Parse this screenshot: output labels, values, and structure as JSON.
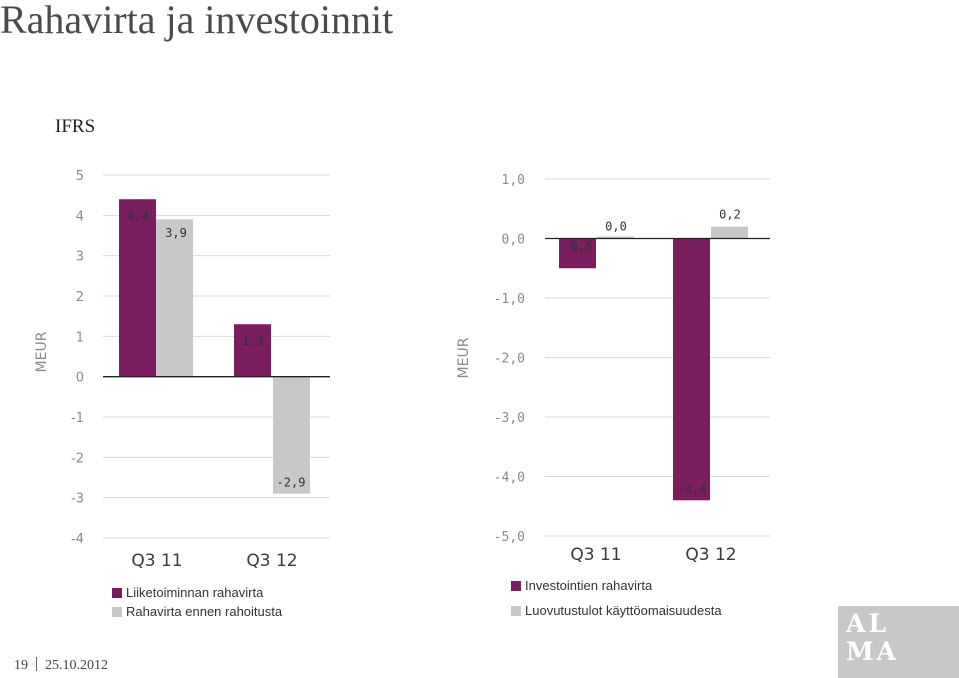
{
  "page": {
    "title": "Rahavirta ja investoinnit",
    "subtitle": "IFRS",
    "footer_page": "19",
    "footer_date": "25.10.2012",
    "logo_text": "ALMA"
  },
  "colors": {
    "purple": "#7a1e5f",
    "gray": "#c8c8c8"
  },
  "chart_data": [
    {
      "type": "bar",
      "categories": [
        "Q3 11",
        "Q3 12"
      ],
      "ylabel": "MEUR",
      "ylim": [
        -4,
        5
      ],
      "yticks": [
        "5",
        "4",
        "3",
        "2",
        "1",
        "0",
        "-1",
        "-2",
        "-3",
        "-4"
      ],
      "grid": true,
      "series": [
        {
          "name": "Liiketoiminnan rahavirta",
          "color": "#7a1e5f",
          "values": [
            4.4,
            1.3
          ],
          "labels": [
            "4,4",
            "1,3"
          ]
        },
        {
          "name": "Rahavirta ennen rahoitusta",
          "color": "#c8c8c8",
          "values": [
            3.9,
            -2.9
          ],
          "labels": [
            "3,9",
            "-2,9"
          ]
        }
      ],
      "legend": "bottom-left"
    },
    {
      "type": "bar",
      "categories": [
        "Q3 11",
        "Q3 12"
      ],
      "ylabel": "MEUR",
      "ylim": [
        -5,
        1
      ],
      "yticks": [
        "1,0",
        "0,0",
        "-1,0",
        "-2,0",
        "-3,0",
        "-4,0",
        "-5,0"
      ],
      "grid": true,
      "series": [
        {
          "name": "Investointien rahavirta",
          "color": "#7a1e5f",
          "values": [
            -0.5,
            -4.4
          ],
          "labels": [
            "-0,5",
            "-4,4"
          ]
        },
        {
          "name": "Luovutustulot käyttöomaisuudesta",
          "color": "#c8c8c8",
          "values": [
            0.0,
            0.2
          ],
          "labels": [
            "0,0",
            "0,2"
          ]
        }
      ],
      "legend": "bottom-left"
    }
  ]
}
